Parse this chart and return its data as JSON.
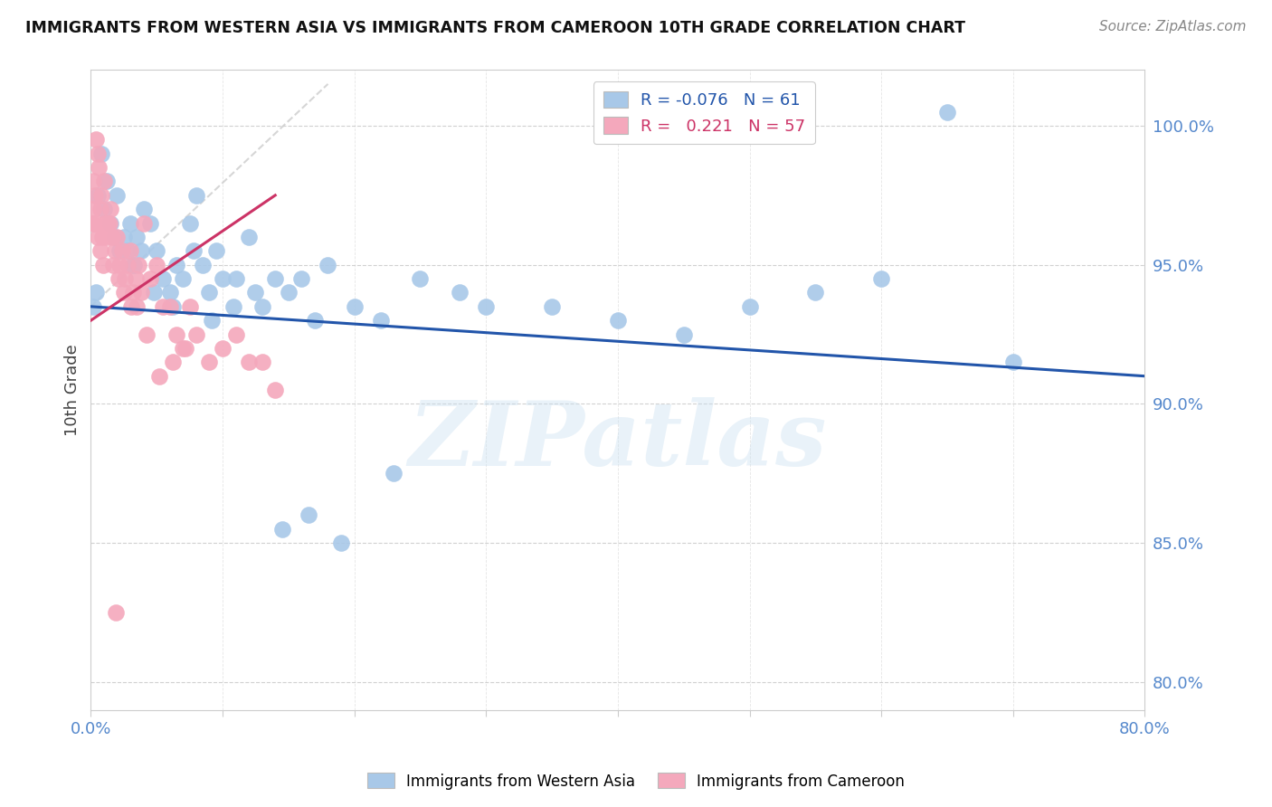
{
  "title": "IMMIGRANTS FROM WESTERN ASIA VS IMMIGRANTS FROM CAMEROON 10TH GRADE CORRELATION CHART",
  "source": "Source: ZipAtlas.com",
  "ylabel": "10th Grade",
  "yticks": [
    80.0,
    85.0,
    90.0,
    95.0,
    100.0
  ],
  "ytick_labels": [
    "80.0%",
    "85.0%",
    "90.0%",
    "95.0%",
    "100.0%"
  ],
  "xlim": [
    0.0,
    80.0
  ],
  "ylim": [
    79.0,
    102.0
  ],
  "watermark": "ZIPatlas",
  "blue_color": "#a8c8e8",
  "pink_color": "#f4a8bc",
  "blue_line_color": "#2255aa",
  "pink_line_color": "#cc3366",
  "diag_color": "#cccccc",
  "background_color": "#ffffff",
  "grid_color": "#cccccc",
  "tick_color": "#5588cc",
  "blue_R": -0.076,
  "blue_N": 61,
  "pink_R": 0.221,
  "pink_N": 57,
  "blue_dots_x": [
    0.2,
    0.4,
    0.5,
    0.8,
    1.0,
    1.2,
    1.5,
    1.8,
    2.0,
    2.2,
    2.5,
    2.8,
    3.0,
    3.2,
    3.5,
    3.8,
    4.0,
    4.5,
    5.0,
    5.5,
    6.0,
    6.5,
    7.0,
    7.5,
    8.0,
    8.5,
    9.0,
    9.5,
    10.0,
    11.0,
    12.0,
    13.0,
    14.0,
    15.0,
    16.0,
    17.0,
    18.0,
    20.0,
    22.0,
    25.0,
    28.0,
    30.0,
    35.0,
    40.0,
    45.0,
    50.0,
    55.0,
    60.0,
    65.0,
    70.0,
    3.3,
    4.8,
    6.2,
    7.8,
    9.2,
    10.8,
    12.5,
    14.5,
    16.5,
    19.0,
    23.0
  ],
  "blue_dots_y": [
    93.5,
    94.0,
    97.5,
    99.0,
    97.0,
    98.0,
    96.5,
    96.0,
    97.5,
    95.5,
    96.0,
    95.5,
    96.5,
    95.0,
    96.0,
    95.5,
    97.0,
    96.5,
    95.5,
    94.5,
    94.0,
    95.0,
    94.5,
    96.5,
    97.5,
    95.0,
    94.0,
    95.5,
    94.5,
    94.5,
    96.0,
    93.5,
    94.5,
    94.0,
    94.5,
    93.0,
    95.0,
    93.5,
    93.0,
    94.5,
    94.0,
    93.5,
    93.5,
    93.0,
    92.5,
    93.5,
    94.0,
    94.5,
    100.5,
    91.5,
    95.0,
    94.0,
    93.5,
    95.5,
    93.0,
    93.5,
    94.0,
    85.5,
    86.0,
    85.0,
    87.5
  ],
  "pink_dots_x": [
    0.1,
    0.2,
    0.3,
    0.4,
    0.5,
    0.6,
    0.7,
    0.8,
    0.9,
    1.0,
    1.1,
    1.2,
    1.3,
    1.5,
    1.6,
    1.8,
    2.0,
    2.2,
    2.4,
    2.6,
    2.8,
    3.0,
    3.2,
    3.4,
    3.6,
    3.8,
    4.0,
    4.5,
    5.0,
    5.5,
    6.0,
    6.5,
    7.0,
    7.5,
    8.0,
    9.0,
    10.0,
    11.0,
    12.0,
    13.0,
    14.0,
    0.15,
    0.35,
    0.55,
    0.75,
    0.95,
    1.4,
    1.7,
    2.1,
    2.5,
    3.1,
    3.5,
    4.2,
    5.2,
    6.2,
    7.2,
    1.9
  ],
  "pink_dots_y": [
    96.5,
    98.0,
    97.5,
    99.5,
    99.0,
    98.5,
    97.0,
    97.5,
    96.0,
    98.0,
    96.5,
    96.0,
    96.5,
    97.0,
    96.0,
    95.5,
    96.0,
    95.0,
    95.5,
    94.5,
    95.0,
    95.5,
    94.0,
    94.5,
    95.0,
    94.0,
    96.5,
    94.5,
    95.0,
    93.5,
    93.5,
    92.5,
    92.0,
    93.5,
    92.5,
    91.5,
    92.0,
    92.5,
    91.5,
    91.5,
    90.5,
    97.0,
    96.5,
    96.0,
    95.5,
    95.0,
    96.5,
    95.0,
    94.5,
    94.0,
    93.5,
    93.5,
    92.5,
    91.0,
    91.5,
    92.0,
    82.5
  ],
  "blue_line_x0": 0.0,
  "blue_line_x1": 80.0,
  "blue_line_y0": 93.5,
  "blue_line_y1": 91.0,
  "pink_line_x0": 0.0,
  "pink_line_x1": 14.0,
  "pink_line_y0": 93.0,
  "pink_line_y1": 97.5,
  "diag_line_x0": 0.0,
  "diag_line_x1": 18.0,
  "diag_line_y0": 93.5,
  "diag_line_y1": 101.5
}
